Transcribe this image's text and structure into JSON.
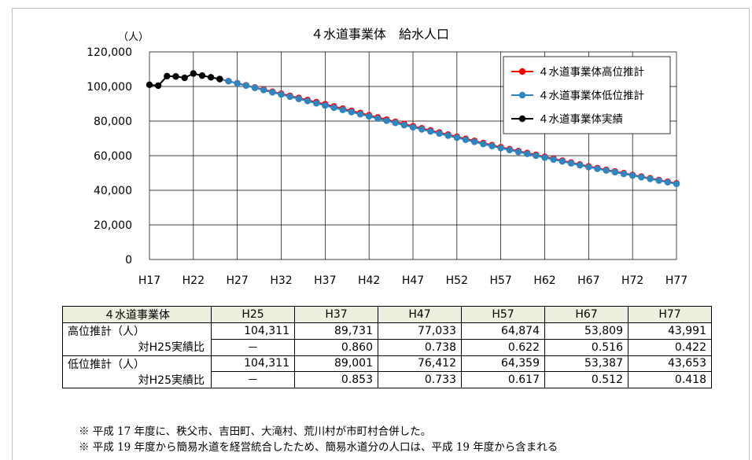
{
  "chart_data": {
    "type": "line",
    "title": "４水道事業体　給水人口",
    "ylabel": "（人）",
    "xlabel": "",
    "ylim": [
      0,
      120000
    ],
    "yticks": [
      "0",
      "20,000",
      "40,000",
      "60,000",
      "80,000",
      "100,000",
      "120,000"
    ],
    "year_start": 17,
    "year_end": 77,
    "xtick_labels": [
      "H17",
      "H22",
      "H27",
      "H32",
      "H37",
      "H42",
      "H47",
      "H52",
      "H57",
      "H62",
      "H67",
      "H72",
      "H77"
    ],
    "grid": true,
    "legend": "top-right",
    "series": [
      {
        "name": "４水道事業体高位推計",
        "color": "#ff0000",
        "start_year": 25,
        "end_year": 77,
        "anchors": [
          [
            25,
            104311
          ],
          [
            37,
            89731
          ],
          [
            47,
            77033
          ],
          [
            57,
            64874
          ],
          [
            67,
            53809
          ],
          [
            77,
            43991
          ]
        ]
      },
      {
        "name": "４水道事業体低位推計",
        "color": "#2e86c1",
        "start_year": 25,
        "end_year": 77,
        "anchors": [
          [
            25,
            104311
          ],
          [
            37,
            89001
          ],
          [
            47,
            76412
          ],
          [
            57,
            64359
          ],
          [
            67,
            53387
          ],
          [
            77,
            43653
          ]
        ]
      },
      {
        "name": "４水道事業体実績",
        "color": "#000000",
        "x": [
          "H17",
          "H18",
          "H19",
          "H20",
          "H21",
          "H22",
          "H23",
          "H24",
          "H25"
        ],
        "values": [
          101000,
          100500,
          106000,
          105800,
          105000,
          107500,
          106300,
          105300,
          104311
        ]
      }
    ]
  },
  "table": {
    "headers": [
      "４水道事業体",
      "H25",
      "H37",
      "H47",
      "H57",
      "H67",
      "H77"
    ],
    "rows": [
      {
        "label": "高位推計（人）",
        "cells": [
          "104,311",
          "89,731",
          "77,033",
          "64,874",
          "53,809",
          "43,991"
        ]
      },
      {
        "label": "対H25実績比",
        "cells": [
          "－",
          "0.860",
          "0.738",
          "0.622",
          "0.516",
          "0.422"
        ]
      },
      {
        "label": "低位推計（人）",
        "cells": [
          "104,311",
          "89,001",
          "76,412",
          "64,359",
          "53,387",
          "43,653"
        ]
      },
      {
        "label": "対H25実績比",
        "cells": [
          "－",
          "0.853",
          "0.733",
          "0.617",
          "0.512",
          "0.418"
        ]
      }
    ]
  },
  "notes": [
    "※ 平成 17 年度に、秩父市、吉田町、大滝村、荒川村が市町村合併した。",
    "※ 平成 19 年度から簡易水道を経営統合したため、簡易水道分の人口は、平成 19 年度から含まれる"
  ]
}
